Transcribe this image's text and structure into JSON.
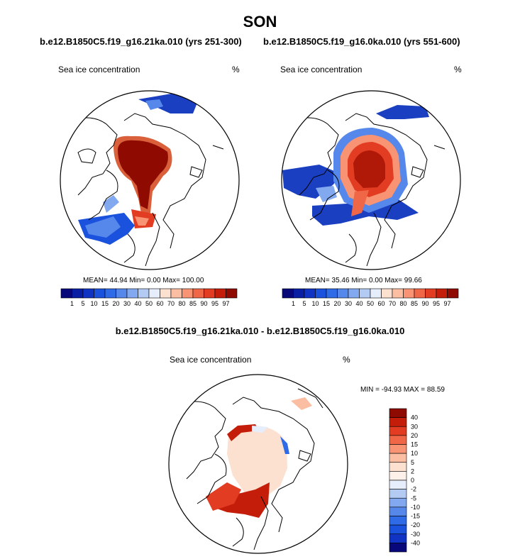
{
  "figure": {
    "season": "SON",
    "diff_title": "b.e12.B1850C5.f19_g16.21ka.010 - b.e12.B1850C5.f19_g16.0ka.010"
  },
  "panels": [
    {
      "title": "b.e12.B1850C5.f19_g16.21ka.010 (yrs 251-300)",
      "variable": "Sea ice concentration",
      "units": "%",
      "stats": "MEAN=  44.94  Min=   0.00  Max= 100.00"
    },
    {
      "title": "b.e12.B1850C5.f19_g16.0ka.010 (yrs 551-600)",
      "variable": "Sea ice concentration",
      "units": "%",
      "stats": "MEAN=  35.46  Min=   0.00  Max=  99.66"
    },
    {
      "variable": "Sea ice concentration",
      "units": "%",
      "stats": "MIN = -94.93 MAX =  88.59"
    }
  ],
  "chart_data": [
    {
      "type": "heatmap",
      "projection": "north-polar-stereographic",
      "title": "b.e12.B1850C5.f19_g16.21ka.010 (yrs 251-300)",
      "variable": "Sea ice concentration",
      "units": "%",
      "mean": 44.94,
      "min": 0.0,
      "max": 100.0,
      "colorbar_levels": [
        1,
        5,
        10,
        15,
        20,
        30,
        40,
        50,
        60,
        70,
        80,
        85,
        90,
        95,
        97
      ],
      "colorbar_colors": [
        "#08087a",
        "#0a1ea3",
        "#1133c4",
        "#1a52dd",
        "#2f6be6",
        "#5688eb",
        "#82a8ef",
        "#b3caf3",
        "#e6eefb",
        "#fce0d0",
        "#fbbea2",
        "#f89473",
        "#f06747",
        "#e23d22",
        "#c41e0a",
        "#8f0a00"
      ]
    },
    {
      "type": "heatmap",
      "projection": "north-polar-stereographic",
      "title": "b.e12.B1850C5.f19_g16.0ka.010 (yrs 551-600)",
      "variable": "Sea ice concentration",
      "units": "%",
      "mean": 35.46,
      "min": 0.0,
      "max": 99.66,
      "colorbar_levels": [
        1,
        5,
        10,
        15,
        20,
        30,
        40,
        50,
        60,
        70,
        80,
        85,
        90,
        95,
        97
      ],
      "colorbar_colors": [
        "#08087a",
        "#0a1ea3",
        "#1133c4",
        "#1a52dd",
        "#2f6be6",
        "#5688eb",
        "#82a8ef",
        "#b3caf3",
        "#e6eefb",
        "#fce0d0",
        "#fbbea2",
        "#f89473",
        "#f06747",
        "#e23d22",
        "#c41e0a",
        "#8f0a00"
      ]
    },
    {
      "type": "heatmap",
      "projection": "north-polar-stereographic",
      "title": "b.e12.B1850C5.f19_g16.21ka.010 - b.e12.B1850C5.f19_g16.0ka.010",
      "variable": "Sea ice concentration",
      "units": "%",
      "min": -94.93,
      "max": 88.59,
      "colorbar_levels": [
        40,
        30,
        20,
        15,
        10,
        5,
        2,
        0,
        -2,
        -5,
        -10,
        -15,
        -20,
        -30,
        -40
      ],
      "colorbar_colors": [
        "#8f0a00",
        "#c41e0a",
        "#e23d22",
        "#f06747",
        "#f89473",
        "#fbbea2",
        "#fce0d0",
        "#fdf1ea",
        "#e6eefb",
        "#b3caf3",
        "#82a8ef",
        "#5688eb",
        "#2f6be6",
        "#1a52dd",
        "#1133c4",
        "#08087a"
      ]
    }
  ]
}
